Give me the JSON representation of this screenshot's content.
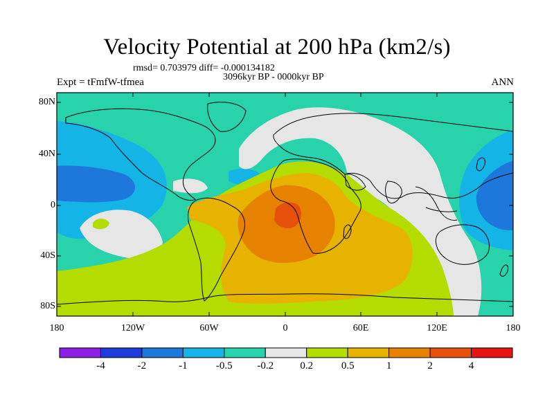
{
  "title": "Velocity Potential at 200 hPa (km2/s)",
  "stats": "rmsd= 0.703979 diff= -0.000134182",
  "period": "3096kyr BP - 0000kyr BP",
  "experiment": "Expt = tFmfW-tfmea",
  "season": "ANN",
  "lat_labels": [
    "80N",
    "40N",
    "0",
    "40S",
    "80S"
  ],
  "lon_labels": [
    "180",
    "120W",
    "60W",
    "0",
    "60E",
    "120E",
    "180"
  ],
  "colorbar": {
    "colors": [
      "#8c1ee6",
      "#1e3cdc",
      "#1e78dc",
      "#14b4e6",
      "#28d2aa",
      "#e6e6e6",
      "#b4dc00",
      "#e6b400",
      "#e68200",
      "#e6500a",
      "#e61414"
    ],
    "labels": [
      "-4",
      "-2",
      "-1",
      "-0.5",
      "-0.2",
      "0.2",
      "0.5",
      "1",
      "2",
      "4"
    ]
  },
  "map_colors": {
    "neg_strong": "#1e78dc",
    "neg_mid": "#14b4e6",
    "neg_weak": "#28d2aa",
    "neutral": "#e6e6e6",
    "pos_weak": "#b4dc00",
    "pos_mid": "#e6b400",
    "pos_strong": "#e68200",
    "pos_max": "#e6500a"
  }
}
